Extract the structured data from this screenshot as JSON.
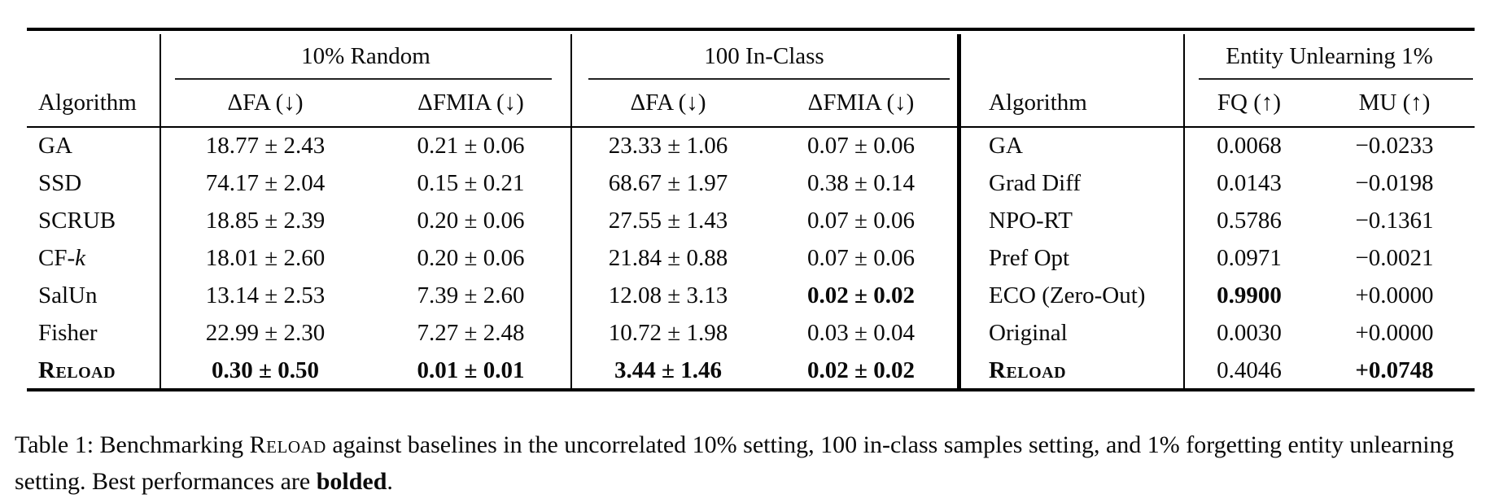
{
  "table": {
    "left": {
      "algorithm_header": "Algorithm",
      "groups": [
        {
          "label": "10% Random",
          "col1": "ΔFA (↓)",
          "col2": "ΔFMIA (↓)"
        },
        {
          "label": "100 In-Class",
          "col1": "ΔFA (↓)",
          "col2": "ΔFMIA (↓)"
        }
      ],
      "rows": [
        {
          "alg": "GA",
          "fa10": "18.77 ± 2.43",
          "fmia10": "0.21 ± 0.06",
          "fa100": "23.33 ± 1.06",
          "fmia100": "0.07 ± 0.06"
        },
        {
          "alg": "SSD",
          "fa10": "74.17 ± 2.04",
          "fmia10": "0.15 ± 0.21",
          "fa100": "68.67 ± 1.97",
          "fmia100": "0.38 ± 0.14"
        },
        {
          "alg": "SCRUB",
          "fa10": "18.85 ± 2.39",
          "fmia10": "0.20 ± 0.06",
          "fa100": "27.55 ± 1.43",
          "fmia100": "0.07 ± 0.06"
        },
        {
          "alg_prefix": "CF-",
          "alg_italic": "k",
          "fa10": "18.01 ± 2.60",
          "fmia10": "0.20 ± 0.06",
          "fa100": "21.84 ± 0.88",
          "fmia100": "0.07 ± 0.06"
        },
        {
          "alg": "SalUn",
          "fa10": "13.14 ± 2.53",
          "fmia10": "7.39 ± 2.60",
          "fa100": "12.08 ± 3.13",
          "fmia100": "0.02 ± 0.02"
        },
        {
          "alg": "Fisher",
          "fa10": "22.99 ± 2.30",
          "fmia10": "7.27 ± 2.48",
          "fa100": "10.72 ± 1.98",
          "fmia100": "0.03 ± 0.04"
        },
        {
          "alg": "Reload",
          "fa10": "0.30 ± 0.50",
          "fmia10": "0.01 ± 0.01",
          "fa100": "3.44 ± 1.46",
          "fmia100": "0.02 ± 0.02"
        }
      ]
    },
    "right": {
      "algorithm_header": "Algorithm",
      "group": {
        "label": "Entity Unlearning 1%",
        "col1": "FQ (↑)",
        "col2": "MU (↑)"
      },
      "rows": [
        {
          "alg": "GA",
          "fq": "0.0068",
          "mu": "−0.0233"
        },
        {
          "alg": "Grad Diff",
          "fq": "0.0143",
          "mu": "−0.0198"
        },
        {
          "alg": "NPO-RT",
          "fq": "0.5786",
          "mu": "−0.1361"
        },
        {
          "alg": "Pref Opt",
          "fq": "0.0971",
          "mu": "−0.0021"
        },
        {
          "alg": "ECO (Zero-Out)",
          "fq": "0.9900",
          "mu": "+0.0000"
        },
        {
          "alg": "Original",
          "fq": "0.0030",
          "mu": "+0.0000"
        },
        {
          "alg": "Reload",
          "fq": "0.4046",
          "mu": "+0.0748"
        }
      ]
    }
  },
  "caption": {
    "prefix": "Table 1: Benchmarking ",
    "method": "Reload",
    "middle": " against baselines in the uncorrelated 10% setting, 100 in-class samples setting, and 1% forgetting entity unlearning setting. Best performances are ",
    "bold_word": "bolded",
    "suffix": "."
  }
}
